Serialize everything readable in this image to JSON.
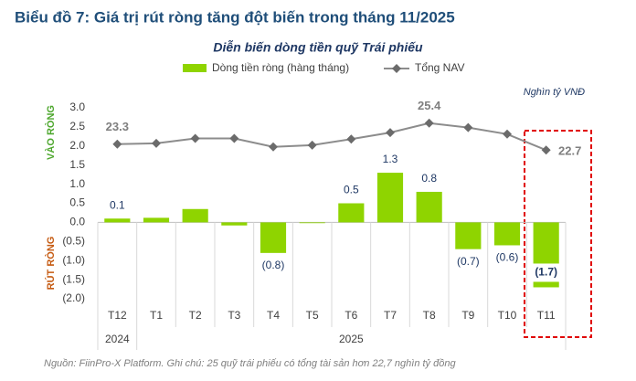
{
  "chart_data": {
    "type": "bar",
    "title": "Biểu đồ 7: Giá trị rút ròng tăng đột biến trong tháng 11/2025",
    "subtitle": "Diễn biến dòng tiền quỹ Trái phiếu",
    "unit": "Nghìn tỷ VNĐ",
    "positive_label": "VÀO RÒNG",
    "negative_label": "RÚT RÒNG",
    "note": "Nguồn: FiinPro-X Platform. Ghi chú: 25 quỹ trái phiếu có tổng tài sản hơn 22,7 nghìn tỷ đồng",
    "categories": [
      "T12",
      "T1",
      "T2",
      "T3",
      "T4",
      "T5",
      "T6",
      "T7",
      "T8",
      "T9",
      "T10",
      "T11"
    ],
    "year_labels": [
      "2024",
      "2025"
    ],
    "series": [
      {
        "name": "Dòng tiền ròng (hàng tháng)",
        "color": "#8fd400",
        "values": [
          0.1,
          0.12,
          0.35,
          -0.08,
          -0.8,
          -0.02,
          0.5,
          1.3,
          0.8,
          -0.7,
          -0.6,
          -1.7
        ],
        "value_labels": [
          "0.1",
          null,
          null,
          null,
          "(0.8)",
          null,
          "0.5",
          "1.3",
          "0.8",
          "(0.7)",
          "(0.6)",
          "(1.7)"
        ]
      },
      {
        "name": "Tổng NAV",
        "color": "#8c8c8c",
        "type": "line",
        "axis": "y2",
        "values": [
          23.3,
          23.38,
          23.87,
          23.87,
          23.03,
          23.2,
          23.8,
          24.45,
          25.4,
          24.95,
          24.3,
          22.7
        ],
        "value_labels": [
          "23.3",
          null,
          null,
          null,
          null,
          null,
          null,
          null,
          "25.4",
          null,
          null,
          "22.7"
        ]
      }
    ],
    "ylim": [
      -2,
      3
    ],
    "yticks": [
      {
        "value": 3,
        "label": "3.0"
      },
      {
        "value": 2.5,
        "label": "2.5"
      },
      {
        "value": 2,
        "label": "2.0"
      },
      {
        "value": 1.5,
        "label": "1.5"
      },
      {
        "value": 1,
        "label": "1.0"
      },
      {
        "value": 0.5,
        "label": "0.5"
      },
      {
        "value": 0,
        "label": "0.0"
      },
      {
        "value": -0.5,
        "label": "(0.5)"
      },
      {
        "value": -1,
        "label": "(1.0)"
      },
      {
        "value": -1.5,
        "label": "(1.5)"
      },
      {
        "value": -2,
        "label": "(2.0)"
      }
    ],
    "y2lim": [
      7.84,
      26.93
    ]
  }
}
